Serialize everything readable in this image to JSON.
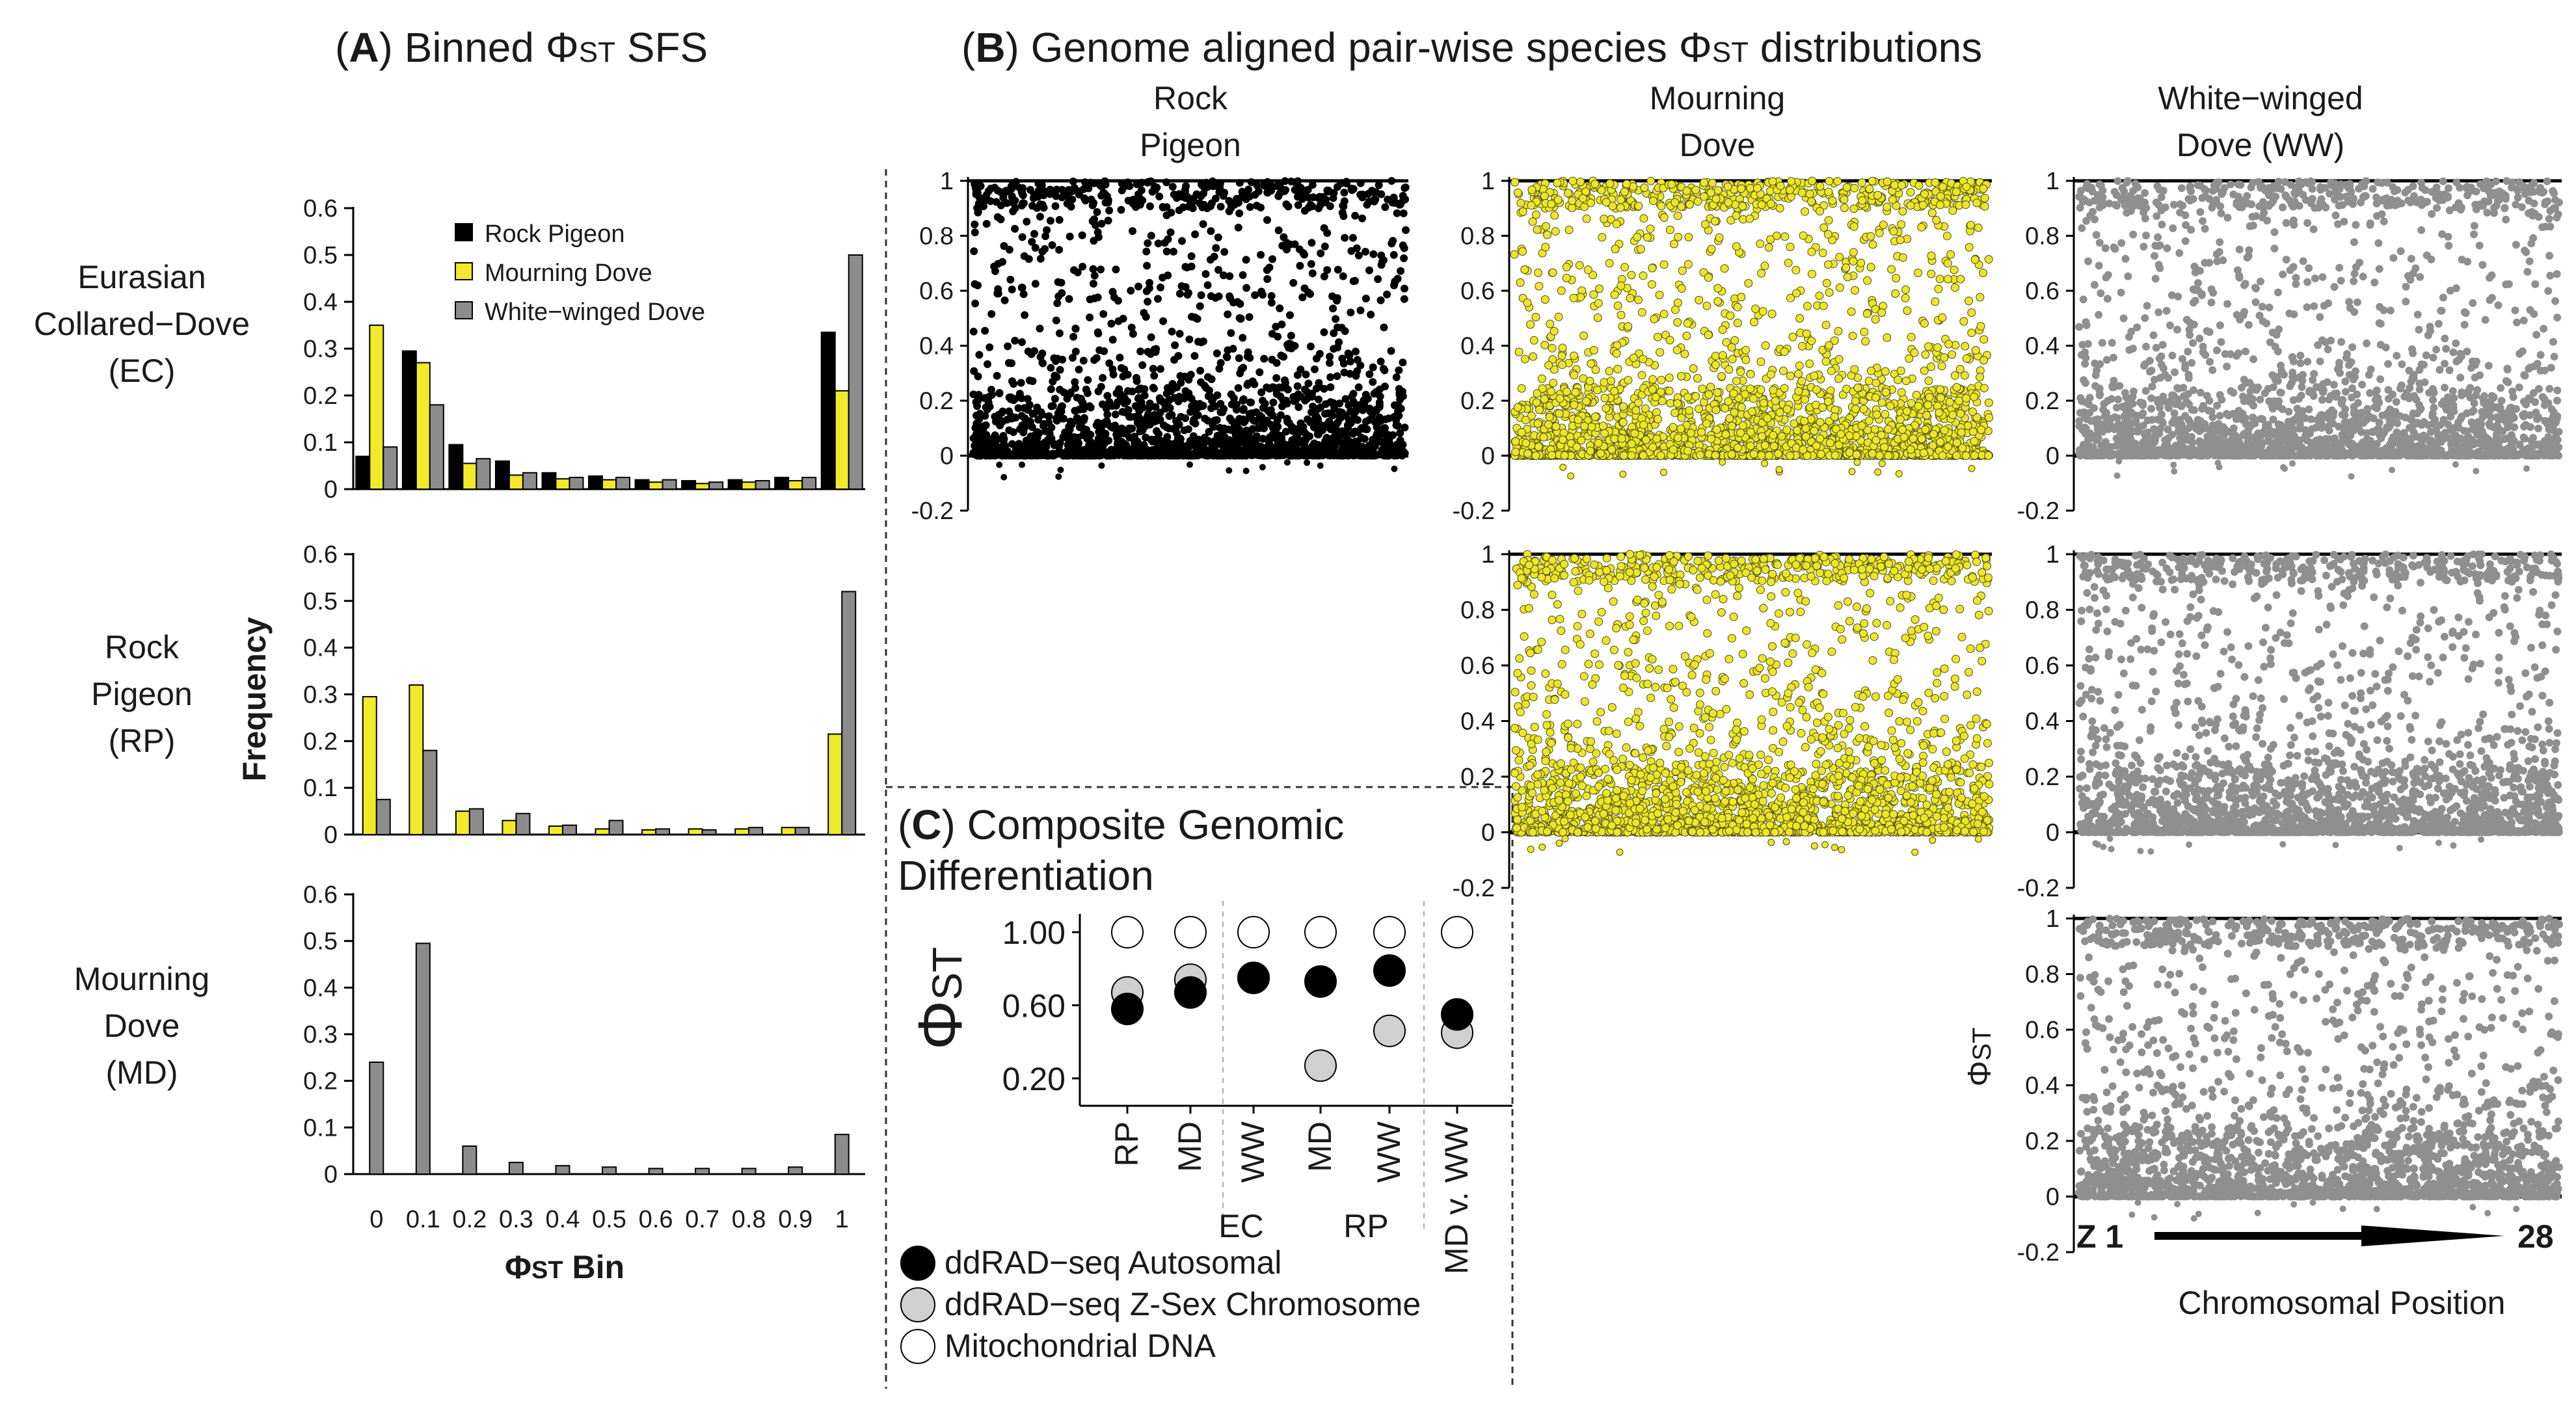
{
  "colors": {
    "rock_pigeon": "#000000",
    "mourning_dove": "#f0ea2a",
    "white_winged_dove": "#8c8c8c",
    "autosomal": "#000000",
    "z_sex": "#d0d0d0",
    "mito": "#ffffff"
  },
  "panel_a": {
    "letter": "A",
    "title_text": ") Binned Φ",
    "title_sub": "ST",
    "title_tail": " SFS",
    "y_axis_label": "Frequency",
    "x_axis_label": "Φ",
    "x_axis_sub": "ST",
    "x_axis_tail": " Bin",
    "legend": [
      "Rock Pigeon",
      "Mourning Dove",
      "White−winged Dove"
    ]
  },
  "panel_b": {
    "letter": "B",
    "title_text": ") Genome aligned pair-wise species Φ",
    "title_sub": "ST",
    "title_tail": " distributions",
    "columns": [
      [
        "Rock",
        "Pigeon"
      ],
      [
        "Mourning",
        "Dove"
      ],
      [
        "White−winged",
        "Dove (WW)"
      ]
    ],
    "y_ticks": [
      "1",
      "0.8",
      "0.6",
      "0.4",
      "0.2",
      "0",
      "-0.2"
    ],
    "y_label": "Φ",
    "y_label_sub": "ST",
    "chrom_start": "Z 1",
    "chrom_end": "28",
    "x_label": "Chromosomal Position"
  },
  "panel_c": {
    "letter": "C",
    "title_line1": ") Composite Genomic",
    "title_line2": "Differentiation",
    "y_label": "Φ",
    "y_label_sub": "ST",
    "y_ticks": [
      "1.00",
      "0.60",
      "0.20"
    ],
    "group_labels": [
      "EC",
      "RP"
    ],
    "legend": [
      "ddRAD−seq Autosomal",
      "ddRAD−seq Z-Sex Chromosome",
      "Mitochondrial DNA"
    ]
  },
  "chart_data": [
    {
      "type": "bar",
      "panel": "A",
      "row_label": [
        "Eurasian",
        "Collared−Dove",
        "(EC)"
      ],
      "categories": [
        "0",
        "0.1",
        "0.2",
        "0.3",
        "0.4",
        "0.5",
        "0.6",
        "0.7",
        "0.8",
        "0.9",
        "1"
      ],
      "series": [
        {
          "name": "Rock Pigeon",
          "values": [
            0.07,
            0.295,
            0.095,
            0.06,
            0.035,
            0.028,
            0.02,
            0.018,
            0.02,
            0.025,
            0.335
          ]
        },
        {
          "name": "Mourning Dove",
          "values": [
            0.35,
            0.27,
            0.055,
            0.03,
            0.022,
            0.02,
            0.015,
            0.012,
            0.015,
            0.018,
            0.21
          ]
        },
        {
          "name": "White−winged Dove",
          "values": [
            0.09,
            0.18,
            0.065,
            0.035,
            0.025,
            0.025,
            0.02,
            0.015,
            0.018,
            0.025,
            0.5
          ]
        }
      ],
      "yticks": [
        "0",
        "0.1",
        "0.2",
        "0.3",
        "0.4",
        "0.5",
        "0.6"
      ],
      "ylim": [
        0,
        0.6
      ]
    },
    {
      "type": "bar",
      "panel": "A",
      "row_label": [
        "Rock",
        "Pigeon",
        "(RP)"
      ],
      "categories": [
        "0",
        "0.1",
        "0.2",
        "0.3",
        "0.4",
        "0.5",
        "0.6",
        "0.7",
        "0.8",
        "0.9",
        "1"
      ],
      "series": [
        {
          "name": "Mourning Dove",
          "values": [
            0.295,
            0.32,
            0.05,
            0.03,
            0.018,
            0.012,
            0.01,
            0.012,
            0.012,
            0.015,
            0.215
          ]
        },
        {
          "name": "White−winged Dove",
          "values": [
            0.075,
            0.18,
            0.055,
            0.045,
            0.02,
            0.03,
            0.012,
            0.01,
            0.015,
            0.015,
            0.52
          ]
        }
      ],
      "yticks": [
        "0",
        "0.1",
        "0.2",
        "0.3",
        "0.4",
        "0.5",
        "0.6"
      ],
      "ylim": [
        0,
        0.6
      ]
    },
    {
      "type": "bar",
      "panel": "A",
      "row_label": [
        "Mourning",
        "Dove",
        "(MD)"
      ],
      "categories": [
        "0",
        "0.1",
        "0.2",
        "0.3",
        "0.4",
        "0.5",
        "0.6",
        "0.7",
        "0.8",
        "0.9",
        "1"
      ],
      "series": [
        {
          "name": "White−winged Dove",
          "values": [
            0.24,
            0.495,
            0.06,
            0.025,
            0.018,
            0.015,
            0.012,
            0.012,
            0.012,
            0.015,
            0.085
          ]
        }
      ],
      "yticks": [
        "0",
        "0.1",
        "0.2",
        "0.3",
        "0.4",
        "0.5",
        "0.6"
      ],
      "ylim": [
        0,
        0.6
      ]
    },
    {
      "type": "scatter",
      "panel": "C",
      "title": "Composite Genomic Differentiation",
      "ylabel": "ΦST",
      "ylim": [
        0.05,
        1.1
      ],
      "categories": [
        "RP",
        "MD",
        "WW",
        "MD",
        "WW",
        "MD v. WW"
      ],
      "groups": [
        {
          "name": "EC",
          "members": [
            "RP",
            "MD",
            "WW"
          ]
        },
        {
          "name": "RP",
          "members": [
            "MD",
            "WW"
          ]
        }
      ],
      "series": [
        {
          "name": "ddRAD−seq Autosomal",
          "values": [
            0.58,
            0.67,
            0.75,
            0.73,
            0.79,
            0.55
          ]
        },
        {
          "name": "ddRAD−seq Z-Sex Chromosome",
          "values": [
            0.67,
            0.74,
            0.75,
            0.27,
            0.46,
            0.45
          ]
        },
        {
          "name": "Mitochondrial DNA",
          "values": [
            1.0,
            1.0,
            1.0,
            1.0,
            1.0,
            1.0
          ]
        }
      ]
    }
  ]
}
